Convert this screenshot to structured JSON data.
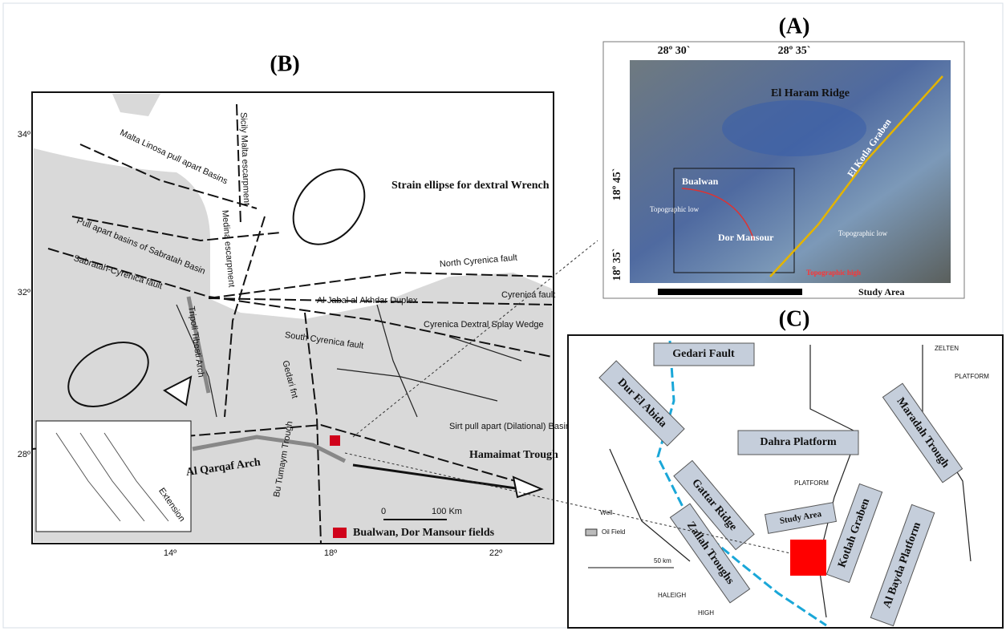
{
  "panel_b": {
    "title": "(B)",
    "lat_ticks": [
      "34º",
      "32º",
      "28º"
    ],
    "lon_ticks": [
      "14º",
      "18º",
      "22º"
    ],
    "labels": [
      "Malta Linosa pull apart Basins",
      "Sicily Malta escarpment",
      "Strain ellipse for dextral Wrench",
      "Pull apart basins of Sabratah Basin",
      "Medina escarpment",
      "Sabratah-Cyrenica fault",
      "North Cyrenica fault",
      "Al Jabal al Akhdar Duplex",
      "Cyrenica fault",
      "South Cyrenica fault",
      "Cyrenica Dextral Splay Wedge",
      "Tripoli Tibesti Arch",
      "Gedari fnt",
      "Sirt pull apart (Dilational) Basin",
      "Hamaimat Trough",
      "Al Qarqaf Arch",
      "Bu Tumaym Trough",
      "Extension"
    ],
    "scale": [
      "0",
      "100 Km"
    ],
    "legend": "Bualwan, Dor Mansour fields"
  },
  "panel_a": {
    "title": "(A)",
    "top_ticks": [
      "28º 30`",
      "28º 35`"
    ],
    "side_ticks": [
      "18º 45`",
      "18º 35`"
    ],
    "labels": [
      "El Haram Ridge",
      "Bualwan",
      "Topographic low",
      "El Kotla Graben",
      "Dor Mansour",
      "Topographic low",
      "Topographic high",
      "Study Area"
    ]
  },
  "panel_c": {
    "title": "(C)",
    "labels": [
      "Gedari Fault",
      "Dur El Abida",
      "Dahra Platform",
      "Maradah Trough",
      "Gattar Ridge",
      "Zallah Troughs",
      "Study Area",
      "Kotlah Graben",
      "Al Bayda Platform",
      "ZELTEN",
      "PLATFORM",
      "PLATFORM",
      "Oil Field",
      "HALEIGH",
      "HIGH",
      "50 km",
      "Well"
    ]
  }
}
